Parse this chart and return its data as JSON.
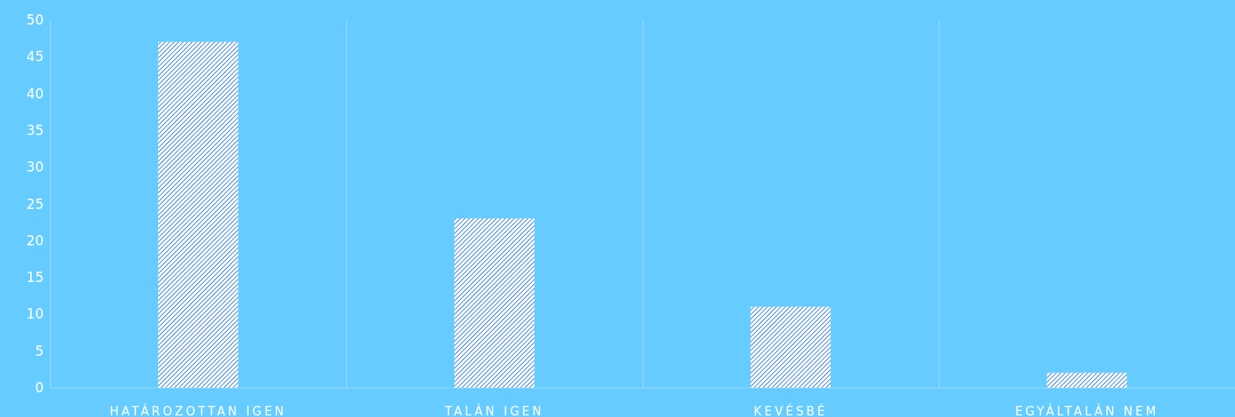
{
  "chart_data": {
    "type": "bar",
    "categories": [
      "HATÁROZOTTAN IGEN",
      "TALÁN IGEN",
      "KEVÉSBÉ",
      "EGYÁLTALÁN NEM"
    ],
    "values": [
      47,
      23,
      11,
      2
    ],
    "color": "#ffffff",
    "ylim": [
      0,
      50
    ],
    "yticks": [
      0,
      5,
      10,
      15,
      20,
      25,
      30,
      35,
      40,
      45,
      50
    ],
    "grid": "x"
  }
}
